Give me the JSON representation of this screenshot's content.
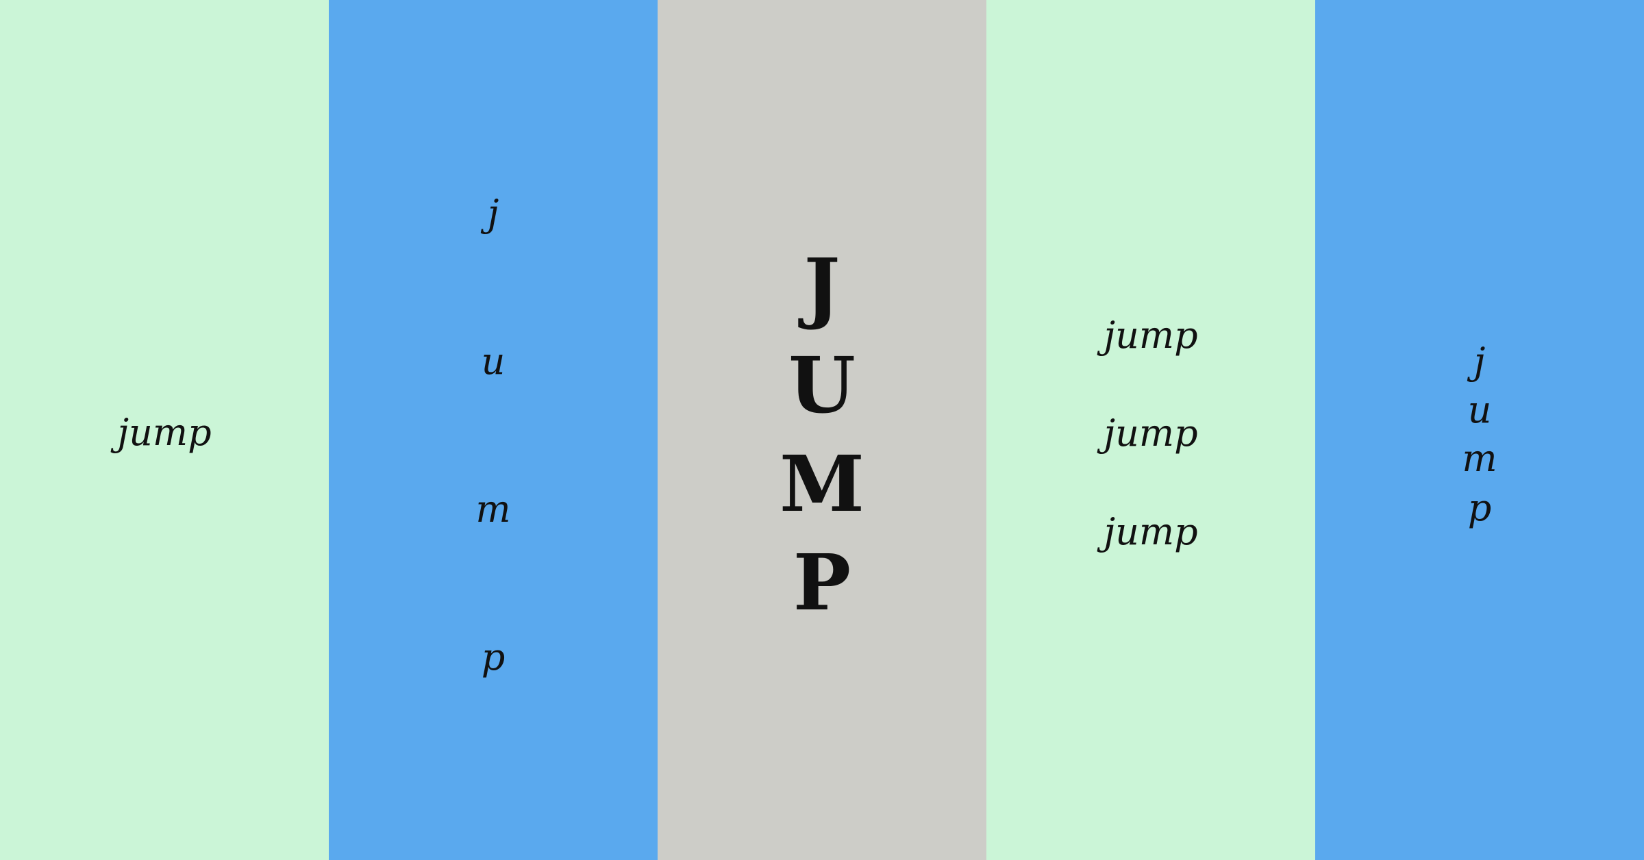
{
  "colors": {
    "mint": "#cbf5d7",
    "blue": "#5aa9ee",
    "gray": "#cdcdc8",
    "text": "#111111"
  },
  "panels": [
    {
      "bg": "#cbf5d7",
      "text": "jump"
    },
    {
      "bg": "#5aa9ee",
      "letters": [
        "j",
        "u",
        "m",
        "p"
      ]
    },
    {
      "bg": "#cdcdc8",
      "letters": [
        "J",
        "U",
        "M",
        "P"
      ]
    },
    {
      "bg": "#cbf5d7",
      "words": [
        "jump",
        "jump",
        "jump"
      ]
    },
    {
      "bg": "#5aa9ee",
      "letters": [
        "j",
        "u",
        "m",
        "p"
      ]
    }
  ]
}
